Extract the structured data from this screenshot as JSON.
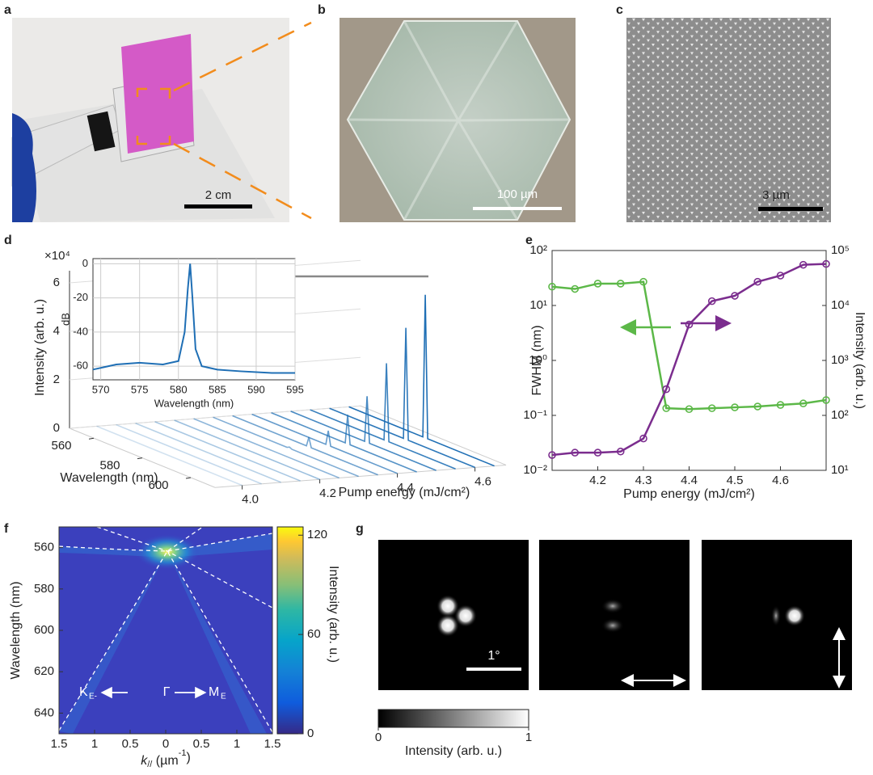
{
  "panel_labels": [
    "a",
    "b",
    "c",
    "d",
    "e",
    "f",
    "g"
  ],
  "scale_bars": {
    "a": "2 cm",
    "b": "100 µm",
    "c": "3 µm"
  },
  "chart_data": [
    {
      "type": "waterfall",
      "multiplier": "×10⁴",
      "ylabel": "Intensity (arb. u.)",
      "ylim": [
        0,
        6.5
      ],
      "yticks": [
        0,
        2,
        4,
        6
      ],
      "wlabel": "Wavelength (nm)",
      "wlim": [
        550,
        610
      ],
      "wticks": [
        560,
        580,
        600
      ],
      "xlabel": "Pump energy (mJ/cm²)",
      "xlim": [
        3.93,
        4.68
      ],
      "xticks": [
        {
          "value": 4,
          "label": "4.0"
        },
        4.2,
        4.4,
        4.6
      ],
      "x": [
        4,
        4.05,
        4.1,
        4.15,
        4.2,
        4.25,
        4.3,
        4.35,
        4.4,
        4.45,
        4.5,
        4.55,
        4.6,
        4.65
      ],
      "values": [
        0,
        0,
        0,
        0,
        0,
        0,
        0.05,
        0.4,
        0.6,
        1.2,
        1.9,
        3.2,
        4.6,
        5.9
      ],
      "peak_wavelength": 581.5,
      "color": "#1f6fb5"
    },
    {
      "type": "line",
      "xlabel": "Wavelength (nm)",
      "ylabel": "dB",
      "xlim": [
        569,
        595
      ],
      "xticks": [
        570,
        575,
        580,
        585,
        590,
        595
      ],
      "ylim": [
        -68,
        3
      ],
      "yticks": [
        0,
        -20,
        -40,
        -60
      ],
      "grid": true,
      "x": [
        569,
        572,
        575,
        578,
        580,
        580.8,
        581.2,
        581.5,
        581.8,
        582.2,
        583,
        585,
        588,
        592,
        595
      ],
      "values": [
        -62,
        -59,
        -58,
        -59,
        -57,
        -40,
        -15,
        0,
        -20,
        -50,
        -60,
        -62,
        -63,
        -64,
        -64
      ],
      "color": "#1f6fb5"
    },
    {
      "type": "dual_log_line",
      "xlabel": "Pump energy  (mJ/cm²)",
      "ylabel": "FWHM (nm)",
      "y2label": "Intensity (arb. u.)",
      "x": [
        4.1,
        4.15,
        4.2,
        4.25,
        4.3,
        4.35,
        4.4,
        4.45,
        4.5,
        4.55,
        4.6,
        4.65,
        4.7
      ],
      "xlim": [
        4.1,
        4.7
      ],
      "xticks": [
        4.2,
        4.3,
        4.4,
        4.5,
        4.6
      ],
      "log": true,
      "ylim": [
        0.01,
        100
      ],
      "yticks": [
        {
          "value": 0.01,
          "label": "10⁻²"
        },
        {
          "value": 0.1,
          "label": "10⁻¹"
        },
        {
          "value": 1,
          "label": "10⁰"
        },
        {
          "value": 10,
          "label": "10¹"
        },
        {
          "value": 100,
          "label": "10²"
        }
      ],
      "y2lim": [
        10,
        100000
      ],
      "y2ticks": [
        {
          "value": 10,
          "label": "10¹"
        },
        {
          "value": 100,
          "label": "10²"
        },
        {
          "value": 1000,
          "label": "10³"
        },
        {
          "value": 10000,
          "label": "10⁴"
        },
        {
          "value": 100000,
          "label": "10⁵"
        }
      ],
      "series": [
        {
          "color": "#5cb848",
          "values": [
            22,
            20,
            25,
            25,
            27,
            0.135,
            0.13,
            0.135,
            0.14,
            0.145,
            0.155,
            0.165,
            0.19
          ]
        },
        {
          "color": "#7b2d8e",
          "axis": "y2",
          "values": [
            19,
            21,
            21,
            22,
            38,
            300,
            4500,
            12000,
            15000,
            27000,
            35000,
            55000,
            57000
          ]
        }
      ]
    },
    {
      "type": "heatmap",
      "ylabel": "Wavelength (nm)",
      "xlabel": "k",
      "xlabel_sub": "//",
      "xlabel_unit": " (µm",
      "xlabel_sup": "-1",
      "xlabel_end": ")",
      "xlim": [
        -1.5,
        1.5
      ],
      "xticks": [
        {
          "value": -1.5,
          "label": "1.5"
        },
        {
          "value": -1,
          "label": "1"
        },
        {
          "value": -0.5,
          "label": "0.5"
        },
        0,
        0.5,
        1,
        1.5
      ],
      "ylim": [
        550,
        650
      ],
      "yticks": [
        560,
        580,
        600,
        620,
        640
      ],
      "clim": [
        0,
        125
      ],
      "cticks": [
        0,
        60,
        120
      ],
      "clabel": "Intensity (arb. u.)",
      "annotations": {
        "k": "K",
        "k_sub": "E-",
        "gamma": "Γ",
        "m": "M",
        "m_sub": "E"
      }
    },
    {
      "type": "colorbar",
      "clim": [
        0,
        1
      ],
      "cticks": [
        0,
        1
      ],
      "clabel": "Intensity (arb. u.)",
      "scale_label": "1°"
    }
  ]
}
